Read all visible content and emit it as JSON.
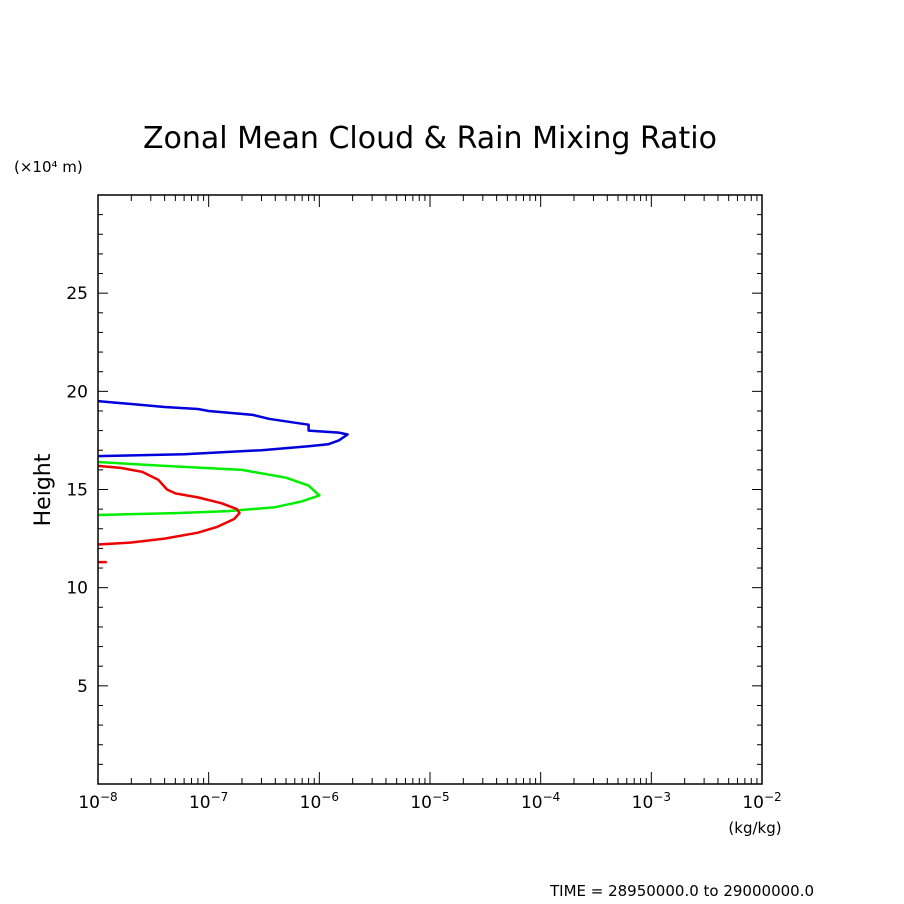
{
  "chart_data": {
    "type": "line",
    "title": "Zonal Mean Cloud & Rain Mixing Ratio",
    "ylabel": "Height",
    "y_unit_label": "(×10⁴ m)",
    "x_unit_label": "(kg/kg)",
    "time_label": "TIME = 28950000.0 to 29000000.0",
    "x_scale": "log",
    "xlim": [
      1e-08,
      0.01
    ],
    "ylim": [
      0,
      30
    ],
    "x_tick_labels": [
      {
        "base": "10",
        "exp": "−8",
        "value": 1e-08
      },
      {
        "base": "10",
        "exp": "−7",
        "value": 1e-07
      },
      {
        "base": "10",
        "exp": "−6",
        "value": 1e-06
      },
      {
        "base": "10",
        "exp": "−5",
        "value": 1e-05
      },
      {
        "base": "10",
        "exp": "−4",
        "value": 0.0001
      },
      {
        "base": "10",
        "exp": "−3",
        "value": 0.001
      },
      {
        "base": "10",
        "exp": "−2",
        "value": 0.01
      }
    ],
    "y_ticks": [
      5,
      10,
      15,
      20,
      25
    ],
    "grid": false,
    "series": [
      {
        "color": "#0000dd",
        "points": [
          [
            1e-08,
            19.5
          ],
          [
            1.6e-08,
            19.4
          ],
          [
            4e-08,
            19.2
          ],
          [
            8e-08,
            19.1
          ],
          [
            1e-07,
            19.0
          ],
          [
            2.5e-07,
            18.8
          ],
          [
            3.5e-07,
            18.6
          ],
          [
            6e-07,
            18.4
          ],
          [
            8e-07,
            18.3
          ],
          [
            8e-07,
            18.0
          ],
          [
            1.5e-06,
            17.9
          ],
          [
            1.8e-06,
            17.8
          ],
          [
            1.5e-06,
            17.5
          ],
          [
            1.2e-06,
            17.3
          ],
          [
            8e-07,
            17.2
          ],
          [
            3e-07,
            17.0
          ],
          [
            6e-08,
            16.8
          ],
          [
            1e-08,
            16.7
          ]
        ]
      },
      {
        "color": "#00ee00",
        "points": [
          [
            1e-08,
            16.4
          ],
          [
            4e-08,
            16.2
          ],
          [
            2e-07,
            16.0
          ],
          [
            5e-07,
            15.6
          ],
          [
            8e-07,
            15.2
          ],
          [
            1e-06,
            14.7
          ],
          [
            7e-07,
            14.4
          ],
          [
            4e-07,
            14.1
          ],
          [
            1.5e-07,
            13.9
          ],
          [
            5e-08,
            13.8
          ],
          [
            1e-08,
            13.7
          ]
        ]
      },
      {
        "color": "#ee0000",
        "points": [
          [
            1e-08,
            16.2
          ],
          [
            1.6e-08,
            16.1
          ],
          [
            2.5e-08,
            15.9
          ],
          [
            3.5e-08,
            15.5
          ],
          [
            4.2e-08,
            15.0
          ],
          [
            5e-08,
            14.8
          ],
          [
            8e-08,
            14.6
          ],
          [
            1.3e-07,
            14.3
          ],
          [
            1.8e-07,
            14.0
          ],
          [
            1.9e-07,
            13.8
          ],
          [
            1.7e-07,
            13.5
          ],
          [
            1.2e-07,
            13.1
          ],
          [
            8e-08,
            12.8
          ],
          [
            4e-08,
            12.5
          ],
          [
            2e-08,
            12.3
          ],
          [
            1e-08,
            12.2
          ]
        ]
      },
      {
        "color": "#ee0000",
        "points": [
          [
            1e-08,
            11.3
          ],
          [
            1.2e-08,
            11.3
          ]
        ]
      }
    ]
  }
}
